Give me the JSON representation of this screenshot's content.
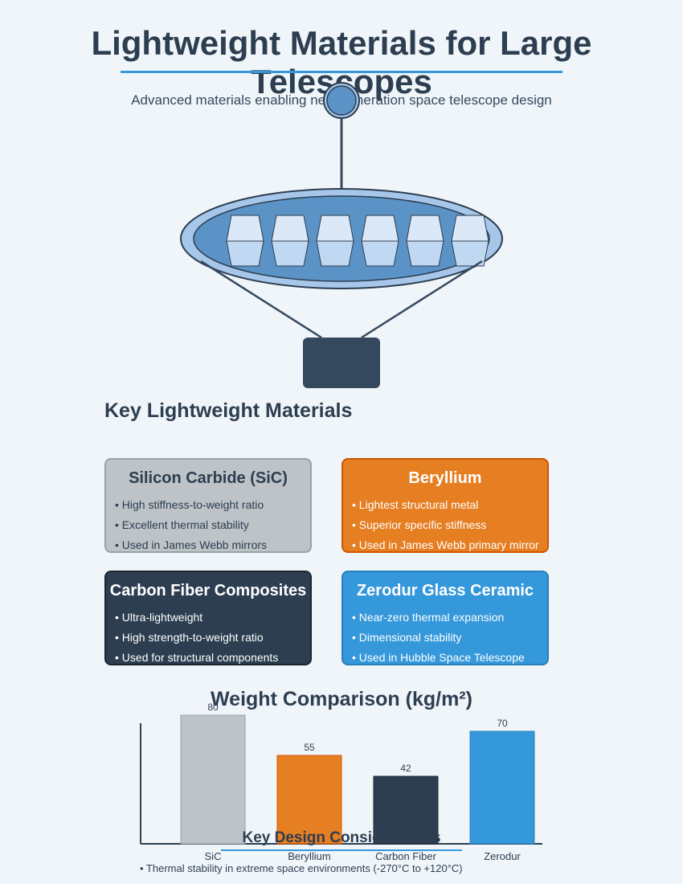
{
  "header": {
    "title": "Lightweight Materials for Large Telescopes",
    "subtitle": "Advanced materials enabling next-generation space telescope design"
  },
  "colors": {
    "background": "#f0f5fa",
    "accent": "#3498db",
    "dark": "#2c3e50",
    "silicon_carbide": "#bdc3c7",
    "beryllium": "#e67e22",
    "carbon_fiber": "#2c3e50",
    "zerodur": "#3498db",
    "mirror_blue": "#5b93c7"
  },
  "telescope": {
    "mirror_segment_count": 6,
    "components": [
      "secondary-mirror",
      "support-strut",
      "primary-mirror",
      "mirror-segments",
      "support-legs",
      "instrument-module"
    ]
  },
  "materials_section": {
    "title": "Key Lightweight Materials",
    "cards": [
      {
        "name": "Silicon Carbide (SiC)",
        "points": [
          "• High stiffness-to-weight ratio",
          "• Excellent thermal stability",
          "• Used in James Webb mirrors"
        ]
      },
      {
        "name": "Beryllium",
        "points": [
          "• Lightest structural metal",
          "• Superior specific stiffness",
          "• Used in James Webb primary mirror"
        ]
      },
      {
        "name": "Carbon Fiber Composites",
        "points": [
          "• Ultra-lightweight",
          "• High strength-to-weight ratio",
          "• Used for structural components"
        ]
      },
      {
        "name": "Zerodur Glass Ceramic",
        "points": [
          "• Near-zero thermal expansion",
          "• Dimensional stability",
          "• Used in Hubble Space Telescope"
        ]
      }
    ]
  },
  "chart_data": {
    "type": "bar",
    "title": "Weight Comparison (kg/m²)",
    "categories": [
      "SiC",
      "Beryllium",
      "Carbon Fiber",
      "Zerodur"
    ],
    "values": [
      80,
      55,
      42,
      70
    ],
    "colors": [
      "#bdc3c7",
      "#e67e22",
      "#2c3e50",
      "#3498db"
    ],
    "ylim": [
      0,
      100
    ],
    "grid": false
  },
  "design_considerations": {
    "title": "Key Design Considerations",
    "items": [
      "• Thermal stability in extreme space environments (-270°C to +120°C)"
    ]
  }
}
